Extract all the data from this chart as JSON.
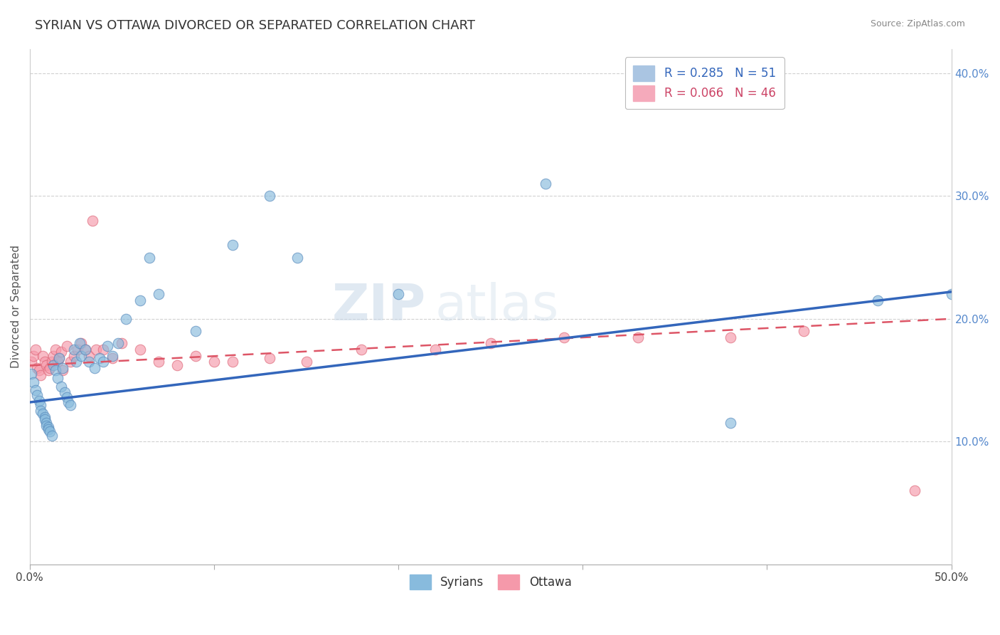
{
  "title": "SYRIAN VS OTTAWA DIVORCED OR SEPARATED CORRELATION CHART",
  "source_text": "Source: ZipAtlas.com",
  "ylabel": "Divorced or Separated",
  "y_tick_labels": [
    "10.0%",
    "20.0%",
    "30.0%",
    "40.0%"
  ],
  "y_tick_values": [
    0.1,
    0.2,
    0.3,
    0.4
  ],
  "xlim": [
    0.0,
    0.5
  ],
  "ylim": [
    0.0,
    0.42
  ],
  "legend_entries": [
    {
      "label": "R = 0.285   N = 51",
      "color": "#aac5e2"
    },
    {
      "label": "R = 0.066   N = 46",
      "color": "#f5aabb"
    }
  ],
  "legend_text_colors": [
    "#3366bb",
    "#cc4466"
  ],
  "syrians_scatter_color": "#88bbdd",
  "ottawa_scatter_color": "#f599aa",
  "syrians_scatter_edge": "#5588bb",
  "ottawa_scatter_edge": "#dd6677",
  "syrians_line_color": "#3366bb",
  "ottawa_line_color": "#dd5566",
  "background_color": "#ffffff",
  "grid_color": "#cccccc",
  "watermark_zip": "ZIP",
  "watermark_atlas": "atlas",
  "syrians_x": [
    0.001,
    0.002,
    0.003,
    0.004,
    0.005,
    0.006,
    0.006,
    0.007,
    0.008,
    0.008,
    0.009,
    0.009,
    0.01,
    0.01,
    0.011,
    0.012,
    0.013,
    0.014,
    0.015,
    0.016,
    0.017,
    0.018,
    0.019,
    0.02,
    0.021,
    0.022,
    0.024,
    0.025,
    0.027,
    0.028,
    0.03,
    0.032,
    0.035,
    0.038,
    0.04,
    0.042,
    0.045,
    0.048,
    0.052,
    0.06,
    0.065,
    0.07,
    0.09,
    0.11,
    0.13,
    0.145,
    0.2,
    0.28,
    0.38,
    0.46,
    0.5
  ],
  "syrians_y": [
    0.155,
    0.148,
    0.142,
    0.138,
    0.133,
    0.13,
    0.125,
    0.123,
    0.12,
    0.118,
    0.115,
    0.113,
    0.112,
    0.11,
    0.108,
    0.105,
    0.162,
    0.158,
    0.152,
    0.168,
    0.145,
    0.16,
    0.14,
    0.136,
    0.132,
    0.13,
    0.175,
    0.165,
    0.18,
    0.17,
    0.175,
    0.165,
    0.16,
    0.168,
    0.165,
    0.178,
    0.17,
    0.18,
    0.2,
    0.215,
    0.25,
    0.22,
    0.19,
    0.26,
    0.3,
    0.25,
    0.22,
    0.31,
    0.115,
    0.215,
    0.22
  ],
  "ottawa_x": [
    0.001,
    0.002,
    0.003,
    0.004,
    0.005,
    0.006,
    0.007,
    0.008,
    0.009,
    0.01,
    0.011,
    0.012,
    0.013,
    0.014,
    0.015,
    0.016,
    0.017,
    0.018,
    0.02,
    0.022,
    0.024,
    0.026,
    0.028,
    0.03,
    0.032,
    0.034,
    0.036,
    0.04,
    0.045,
    0.05,
    0.06,
    0.07,
    0.08,
    0.09,
    0.1,
    0.11,
    0.13,
    0.15,
    0.18,
    0.22,
    0.25,
    0.29,
    0.33,
    0.38,
    0.42,
    0.48
  ],
  "ottawa_y": [
    0.165,
    0.17,
    0.175,
    0.16,
    0.158,
    0.154,
    0.17,
    0.165,
    0.162,
    0.158,
    0.16,
    0.165,
    0.17,
    0.175,
    0.165,
    0.168,
    0.173,
    0.158,
    0.178,
    0.165,
    0.17,
    0.175,
    0.18,
    0.175,
    0.17,
    0.28,
    0.175,
    0.175,
    0.168,
    0.18,
    0.175,
    0.165,
    0.162,
    0.17,
    0.165,
    0.165,
    0.168,
    0.165,
    0.175,
    0.175,
    0.18,
    0.185,
    0.185,
    0.185,
    0.19,
    0.06
  ],
  "syrians_line_x": [
    0.0,
    0.5
  ],
  "syrians_line_y": [
    0.132,
    0.222
  ],
  "ottawa_line_x": [
    0.0,
    0.5
  ],
  "ottawa_line_y": [
    0.162,
    0.2
  ],
  "title_fontsize": 13,
  "axis_label_fontsize": 11,
  "tick_fontsize": 11,
  "scatter_size": 110
}
